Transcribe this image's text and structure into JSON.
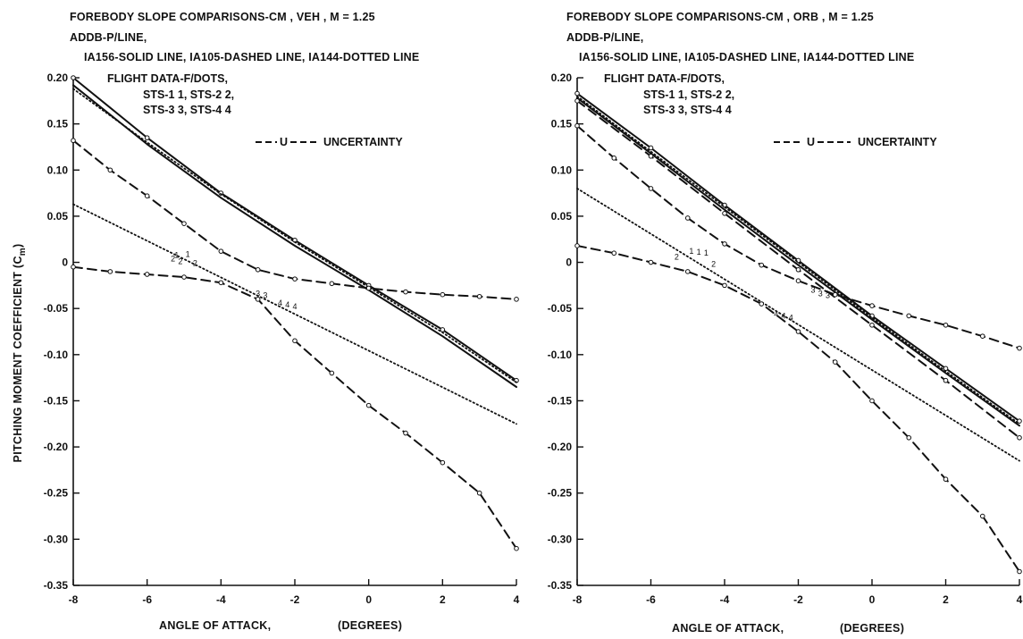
{
  "ylabel": "PITCHING MOMENT COEFFICIENT (C",
  "ylabel_sub": "m",
  "ylabel_close": ")",
  "xlabel": "ANGLE OF ATTACK,",
  "xunit": "(DEGREES)",
  "panels": [
    {
      "title": "FOREBODY SLOPE COMPARISONS-CM   , VEH   , M = 1.25",
      "line2": "ADDB-P/LINE,",
      "line3": "IA156-SOLID LINE, IA105-DASHED LINE, IA144-DOTTED LINE",
      "legend": {
        "flight": "FLIGHT DATA-F/DOTS,",
        "sts12": "STS-1   1, STS-2   2,",
        "sts34": "STS-3   3, STS-4   4",
        "uncertainty": "UNCERTAINTY",
        "u": "U"
      }
    },
    {
      "title": "FOREBODY SLOPE COMPARISONS-CM   , ORB   , M = 1.25",
      "line2": "ADDB-P/LINE,",
      "line3": "IA156-SOLID LINE, IA105-DASHED LINE, IA144-DOTTED LINE",
      "legend": {
        "flight": "FLIGHT DATA-F/DOTS,",
        "sts12": "STS-1   1, STS-2   2,",
        "sts34": "STS-3   3, STS-4   4",
        "uncertainty": "UNCERTAINTY",
        "u": "U"
      }
    }
  ],
  "chart_data": [
    {
      "type": "line",
      "title": "FOREBODY SLOPE COMPARISONS-CM   , VEH   , M = 1.25",
      "xlabel": "ANGLE OF ATTACK, (DEGREES)",
      "ylabel": "PITCHING MOMENT COEFFICIENT (Cm)",
      "xlim": [
        -8,
        4
      ],
      "ylim": [
        -0.35,
        0.2
      ],
      "xticks": [
        -8,
        -6,
        -4,
        -2,
        0,
        2,
        4
      ],
      "xticklabels": [
        "-8",
        "-6",
        "-4",
        "-2",
        "0",
        "2",
        "4"
      ],
      "yticks": [
        0.2,
        0.15,
        0.1,
        0.05,
        0,
        -0.05,
        -0.1,
        -0.15,
        -0.2,
        -0.25,
        -0.3,
        -0.35
      ],
      "yticklabels": [
        "0.20",
        "0.15",
        "0.10",
        "0.05",
        "0",
        "-0.05",
        "-0.10",
        "-0.15",
        "-0.20",
        "-0.25",
        "-0.30",
        "-0.35"
      ],
      "series": [
        {
          "name": "ADDB-P/LINE",
          "style": "solid-marked",
          "x": [
            -8,
            -6,
            -4,
            -2,
            0,
            2,
            4
          ],
          "y": [
            0.2,
            0.135,
            0.075,
            0.024,
            -0.025,
            -0.073,
            -0.128
          ]
        },
        {
          "name": "IA156-SOLID LINE",
          "style": "solid",
          "x": [
            -8,
            -6,
            -4,
            -2,
            0,
            2,
            4
          ],
          "y": [
            0.192,
            0.128,
            0.07,
            0.018,
            -0.03,
            -0.08,
            -0.135
          ]
        },
        {
          "name": "IA144-DOTTED LINE",
          "style": "dotted",
          "x": [
            -8,
            -6,
            -4,
            -2,
            0,
            2,
            4
          ],
          "y": [
            0.188,
            0.13,
            0.074,
            0.022,
            -0.027,
            -0.076,
            -0.13
          ]
        },
        {
          "style": "dotted",
          "x": [
            -8,
            4
          ],
          "y": [
            0.063,
            -0.175
          ]
        },
        {
          "name": "UNCERTAINTY",
          "style": "dashed",
          "x": [
            -8,
            -7,
            -6,
            -5,
            -4,
            -3,
            -2,
            -1,
            0,
            1,
            2,
            3,
            4
          ],
          "y": [
            0.132,
            0.1,
            0.072,
            0.042,
            0.012,
            -0.008,
            -0.018,
            -0.023,
            -0.028,
            -0.032,
            -0.035,
            -0.037,
            -0.04
          ]
        },
        {
          "name": "UNCERTAINTY",
          "style": "dashed",
          "x": [
            -8,
            -7,
            -6,
            -5,
            -4,
            -3,
            -2,
            -1,
            0,
            1,
            2,
            3,
            4
          ],
          "y": [
            -0.005,
            -0.01,
            -0.013,
            -0.016,
            -0.022,
            -0.04,
            -0.085,
            -0.12,
            -0.155,
            -0.185,
            -0.217,
            -0.25,
            -0.31
          ]
        }
      ],
      "flight_points": [
        {
          "label": "1",
          "x": -5.2,
          "y": 0.008
        },
        {
          "label": "1",
          "x": -4.9,
          "y": 0.009
        },
        {
          "label": "2",
          "x": -4.7,
          "y": -0.001
        },
        {
          "label": "2",
          "x": -5.3,
          "y": 0.004
        },
        {
          "label": "2",
          "x": -5.1,
          "y": 0.001
        },
        {
          "label": "3",
          "x": -3.0,
          "y": -0.034
        },
        {
          "label": "3",
          "x": -2.8,
          "y": -0.036
        },
        {
          "label": "4",
          "x": -2.4,
          "y": -0.044
        },
        {
          "label": "4",
          "x": -2.2,
          "y": -0.046
        },
        {
          "label": "4",
          "x": -2.0,
          "y": -0.048
        }
      ]
    },
    {
      "type": "line",
      "title": "FOREBODY SLOPE COMPARISONS-CM   , ORB   , M = 1.25",
      "xlabel": "ANGLE OF ATTACK, (DEGREES)",
      "ylabel": "PITCHING MOMENT COEFFICIENT (Cm)",
      "xlim": [
        -8,
        4
      ],
      "ylim": [
        -0.35,
        0.2
      ],
      "xticks": [
        -8,
        -6,
        -4,
        -2,
        0,
        2,
        4
      ],
      "xticklabels": [
        "-8",
        "-6",
        "-4",
        "-2",
        "0",
        "2",
        "4"
      ],
      "yticks": [
        0.2,
        0.15,
        0.1,
        0.05,
        0,
        -0.05,
        -0.1,
        -0.15,
        -0.2,
        -0.25,
        -0.3,
        -0.35
      ],
      "yticklabels": [
        "0.20",
        "0.15",
        "0.10",
        "0.05",
        "0",
        "-0.05",
        "-0.10",
        "-0.15",
        "-0.20",
        "-0.25",
        "-0.30",
        "-0.35"
      ],
      "series": [
        {
          "name": "ADDB-P/LINE",
          "style": "solid-marked",
          "x": [
            -8,
            -6,
            -4,
            -2,
            0,
            2,
            4
          ],
          "y": [
            0.183,
            0.124,
            0.062,
            0.002,
            -0.058,
            -0.115,
            -0.172
          ]
        },
        {
          "name": "IA156-SOLID LINE",
          "style": "solid",
          "x": [
            -8,
            -6,
            -4,
            -2,
            0,
            2,
            4
          ],
          "y": [
            0.178,
            0.118,
            0.057,
            -0.003,
            -0.062,
            -0.12,
            -0.177
          ]
        },
        {
          "name": "IA144-DOTTED LINE",
          "style": "dotted",
          "x": [
            -8,
            -6,
            -4,
            -2,
            0,
            2,
            4
          ],
          "y": [
            0.18,
            0.12,
            0.06,
            0.0,
            -0.06,
            -0.118,
            -0.175
          ]
        },
        {
          "name": "IA105-DASHED LINE",
          "style": "dashed",
          "x": [
            -8,
            -6,
            -4,
            -2,
            0,
            2,
            4
          ],
          "y": [
            0.175,
            0.115,
            0.053,
            -0.008,
            -0.068,
            -0.128,
            -0.19
          ]
        },
        {
          "style": "dotted",
          "x": [
            -8,
            4
          ],
          "y": [
            0.08,
            -0.215
          ]
        },
        {
          "name": "UNCERTAINTY",
          "style": "dashed",
          "x": [
            -8,
            -7,
            -6,
            -5,
            -4,
            -3,
            -2,
            -1,
            0,
            1,
            2,
            3,
            4
          ],
          "y": [
            0.148,
            0.113,
            0.08,
            0.048,
            0.02,
            -0.003,
            -0.02,
            -0.035,
            -0.047,
            -0.058,
            -0.068,
            -0.08,
            -0.093
          ]
        },
        {
          "name": "UNCERTAINTY",
          "style": "dashed",
          "x": [
            -8,
            -7,
            -6,
            -5,
            -4,
            -3,
            -2,
            -1,
            0,
            1,
            2,
            3,
            4
          ],
          "y": [
            0.018,
            0.01,
            0.0,
            -0.01,
            -0.025,
            -0.045,
            -0.075,
            -0.108,
            -0.15,
            -0.19,
            -0.235,
            -0.275,
            -0.335
          ]
        }
      ],
      "flight_points": [
        {
          "label": "1",
          "x": -4.9,
          "y": 0.012
        },
        {
          "label": "1",
          "x": -4.7,
          "y": 0.011
        },
        {
          "label": "1",
          "x": -4.5,
          "y": 0.01
        },
        {
          "label": "2",
          "x": -5.3,
          "y": 0.006
        },
        {
          "label": "2",
          "x": -4.3,
          "y": -0.002
        },
        {
          "label": "3",
          "x": -1.6,
          "y": -0.03
        },
        {
          "label": "3",
          "x": -1.4,
          "y": -0.034
        },
        {
          "label": "3",
          "x": -1.2,
          "y": -0.036
        },
        {
          "label": "4",
          "x": -2.6,
          "y": -0.056
        },
        {
          "label": "4",
          "x": -2.4,
          "y": -0.058
        },
        {
          "label": "4",
          "x": -2.2,
          "y": -0.06
        }
      ]
    }
  ]
}
